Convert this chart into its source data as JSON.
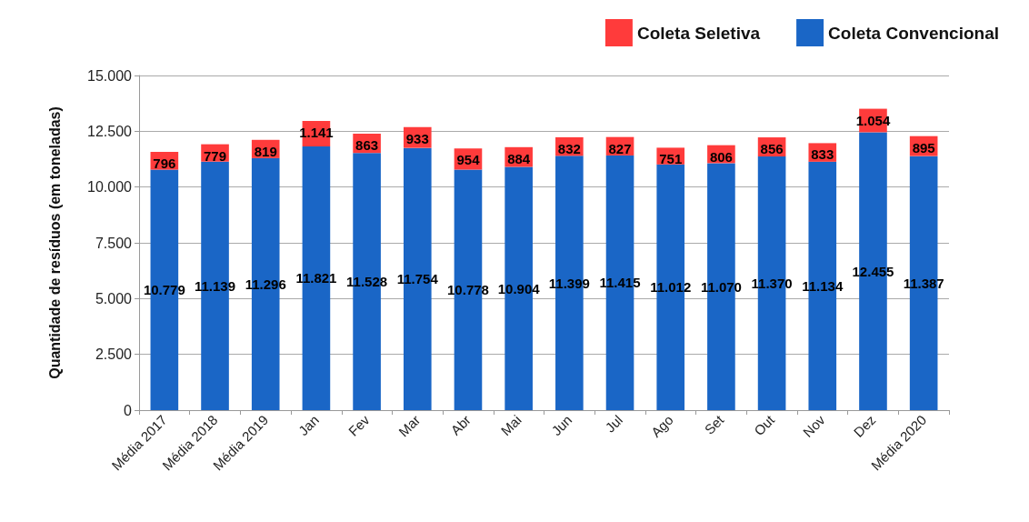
{
  "chart_data": {
    "type": "bar",
    "stacked": true,
    "ylabel": "Quantidade de resíduos (em toneladas)",
    "categories": [
      "Média 2017",
      "Média 2018",
      "Média 2019",
      "Jan",
      "Fev",
      "Mar",
      "Abr",
      "Mai",
      "Jun",
      "Jul",
      "Ago",
      "Set",
      "Out",
      "Nov",
      "Dez",
      "Média 2020"
    ],
    "series": [
      {
        "name": "Coleta Convencional",
        "color": "#1a66c6",
        "values": [
          10779,
          11139,
          11296,
          11821,
          11528,
          11754,
          10778,
          10904,
          11399,
          11415,
          11012,
          11070,
          11370,
          11134,
          12455,
          11387
        ],
        "value_labels": [
          "10.779",
          "11.139",
          "11.296",
          "11.821",
          "11.528",
          "11.754",
          "10.778",
          "10.904",
          "11.399",
          "11.415",
          "11.012",
          "11.070",
          "11.370",
          "11.134",
          "12.455",
          "11.387"
        ]
      },
      {
        "name": "Coleta Seletiva",
        "color": "#ff3b3b",
        "values": [
          796,
          779,
          819,
          1141,
          863,
          933,
          954,
          884,
          832,
          827,
          751,
          806,
          856,
          833,
          1054,
          895
        ],
        "value_labels": [
          "796",
          "779",
          "819",
          "1.141",
          "863",
          "933",
          "954",
          "884",
          "832",
          "827",
          "751",
          "806",
          "856",
          "833",
          "1.054",
          "895"
        ]
      }
    ],
    "ylim": [
      0,
      15000
    ],
    "yticks": [
      {
        "value": 0,
        "label": "0"
      },
      {
        "value": 2500,
        "label": "2.500"
      },
      {
        "value": 5000,
        "label": "5.000"
      },
      {
        "value": 7500,
        "label": "7.500"
      },
      {
        "value": 10000,
        "label": "10.000"
      },
      {
        "value": 12500,
        "label": "12.500"
      },
      {
        "value": 15000,
        "label": "15.000"
      }
    ],
    "grid": "y",
    "legend": "top right"
  }
}
